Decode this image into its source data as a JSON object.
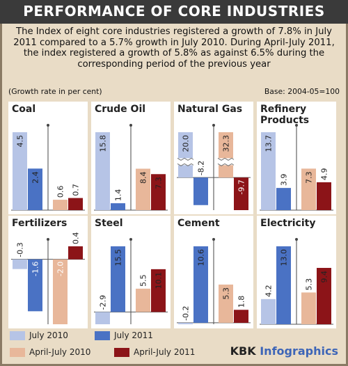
{
  "title": "PERFORMANCE OF CORE INDUSTRIES",
  "intro": "The Index of eight core industries registered a growth of 7.8% in July 2011 compared to a 5.7% growth in July 2010. During April-July 2011, the index registered a growth of 5.8% as against 6.5% during the corresponding period of the previous year",
  "unit_note": "(Growth rate in per cent)",
  "base_note": "Base: 2004-05=100",
  "colors": {
    "background": "#e9dcc6",
    "panel": "#ffffff",
    "title_bar": "#3a3a3a",
    "july2010": "#b6c4e6",
    "july2011": "#4a72c4",
    "aprjul2010": "#e8b79a",
    "aprjul2011": "#8c1418",
    "brand_accent": "#3d65b7"
  },
  "chart_data": {
    "type": "bar",
    "series": [
      {
        "name": "July 2010",
        "color": "#b6c4e6"
      },
      {
        "name": "July 2011",
        "color": "#4a72c4"
      },
      {
        "name": "April-July 2010",
        "color": "#e8b79a"
      },
      {
        "name": "April-July 2011",
        "color": "#8c1418"
      }
    ],
    "panels": [
      {
        "name": "Coal",
        "values": [
          "4.5",
          "2.4",
          "0.6",
          "0.7"
        ]
      },
      {
        "name": "Crude Oil",
        "values": [
          "15.8",
          "1.4",
          "8.4",
          "7.3"
        ]
      },
      {
        "name": "Natural Gas",
        "values": [
          "20.0",
          "-8.2",
          "32.3",
          "-9.7"
        ],
        "broken_axis": true
      },
      {
        "name": "Refinery Products",
        "values": [
          "13.7",
          "3.9",
          "7.3",
          "4.9"
        ]
      },
      {
        "name": "Fertilizers",
        "values": [
          "-0.3",
          "-1.6",
          "-2.0",
          "0.4"
        ]
      },
      {
        "name": "Steel",
        "values": [
          "-2.9",
          "15.5",
          "5.5",
          "10.1"
        ]
      },
      {
        "name": "Cement",
        "values": [
          "-0.2",
          "10.6",
          "5.3",
          "1.8"
        ]
      },
      {
        "name": "Electricity",
        "values": [
          "4.2",
          "13.0",
          "5.3",
          "9.4"
        ]
      }
    ]
  },
  "legend": [
    "July 2010",
    "July 2011",
    "April-July 2010",
    "April-July 2011"
  ],
  "brand": {
    "part1": "KBK ",
    "part2": "Infographics"
  }
}
